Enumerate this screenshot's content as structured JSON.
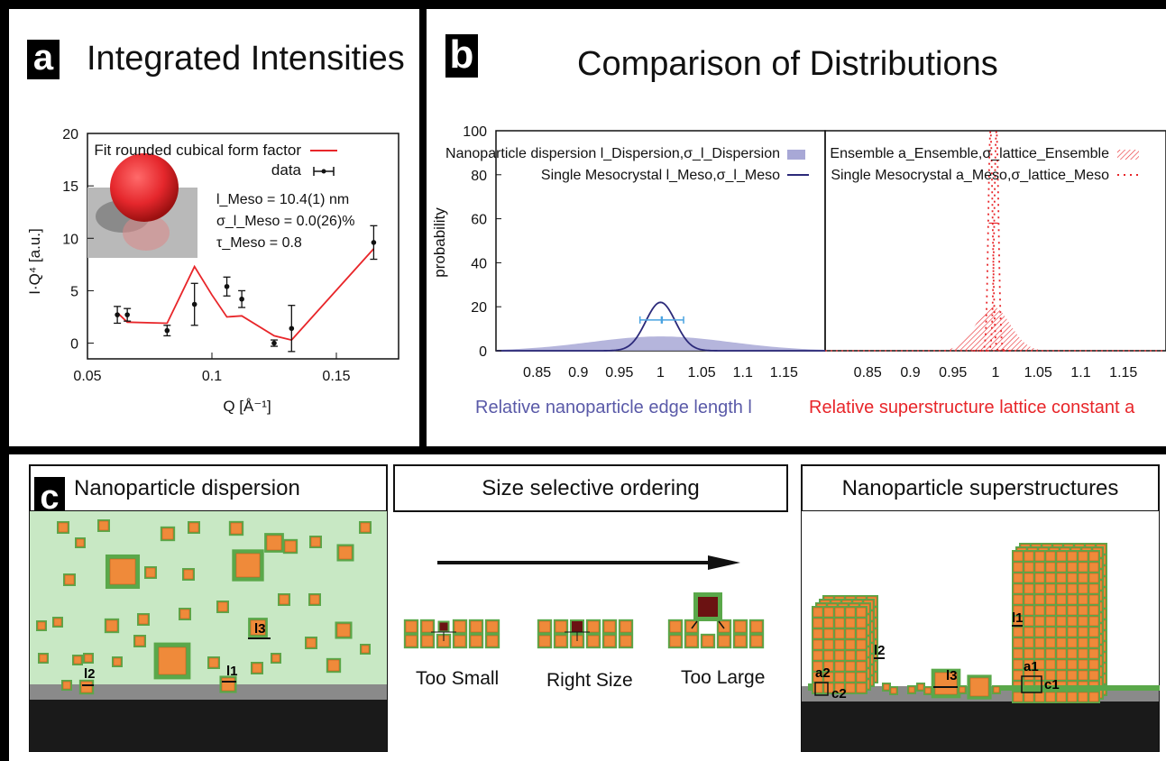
{
  "panel_a": {
    "label": "a",
    "title": "Integrated Intensities",
    "ylabel": "I·Q⁴ [a.u.]",
    "xlabel": "Q [Å⁻¹]",
    "legend_fit": "Fit rounded cubical form factor",
    "legend_data": "data",
    "params": [
      "l_Meso = 10.4(1) nm",
      "σ_l_Meso = 0.0(26)%",
      "τ_Meso = 0.8"
    ],
    "colors": {
      "fit": "#e8262a",
      "data": "#111111",
      "sphere": "#e5272c"
    }
  },
  "panel_b": {
    "label": "b",
    "title": "Comparison of Distributions",
    "ylabel": "probability",
    "left_legend": [
      "Nanoparticle dispersion l_Dispersion,σ_l_Dispersion",
      "Single Mesocrystal l_Meso,σ_l_Meso"
    ],
    "right_legend": [
      "Ensemble a_Ensemble,σ_lattice_Ensemble",
      "Single Mesocrystal a_Meso,σ_lattice_Meso"
    ],
    "left_xlabel": "Relative nanoparticle edge length l",
    "right_xlabel": "Relative superstructure lattice constant a",
    "colors": {
      "dispersion_fill": "#a8a8d6",
      "meso_line": "#2c2a7a",
      "ensemble": "#e8262a",
      "errbar": "#4aa3e0",
      "left_xlabel": "#5a5aa8",
      "right_xlabel": "#e8262a"
    }
  },
  "panel_c": {
    "label": "c",
    "box1_title": "Nanoparticle dispersion",
    "box2_title": "Size selective ordering",
    "box3_title": "Nanoparticle superstructures",
    "captions": [
      "Too Small",
      "Right Size",
      "Too Large"
    ],
    "labels": [
      "l3",
      "l2",
      "l1",
      "l1",
      "l2",
      "l3",
      "a2",
      "c2",
      "a1",
      "c1"
    ],
    "colors": {
      "solution": "#c8e8c4",
      "particle": "#ef8a3a",
      "shell": "#5aa84a",
      "substrate": "#1a1a1a",
      "wetting": "#8a8a8a",
      "dark_particle": "#6b1212"
    }
  },
  "chart_data": [
    {
      "type": "scatter",
      "title": "Integrated Intensities",
      "xlabel": "Q [Å⁻¹]",
      "ylabel": "I·Q⁴ [a.u.]",
      "xlim": [
        0.05,
        0.175
      ],
      "ylim": [
        -1.5,
        20
      ],
      "xticks": [
        0.05,
        0.1,
        0.15
      ],
      "yticks": [
        0,
        5,
        10,
        15,
        20
      ],
      "series": [
        {
          "name": "data",
          "x": [
            0.062,
            0.066,
            0.082,
            0.093,
            0.106,
            0.112,
            0.125,
            0.132,
            0.165
          ],
          "y": [
            2.7,
            2.7,
            1.2,
            3.7,
            5.4,
            4.2,
            0.0,
            1.4,
            9.6
          ],
          "err": [
            0.8,
            0.6,
            0.5,
            2.0,
            0.9,
            0.8,
            0.3,
            2.2,
            1.6
          ]
        },
        {
          "name": "Fit rounded cubical form factor",
          "x": [
            0.062,
            0.066,
            0.082,
            0.093,
            0.1,
            0.106,
            0.112,
            0.125,
            0.132,
            0.165
          ],
          "y": [
            2.9,
            2.0,
            1.9,
            7.3,
            4.6,
            2.5,
            2.6,
            0.7,
            0.3,
            9.0
          ]
        }
      ]
    },
    {
      "type": "area",
      "xlim": [
        0.8,
        1.2
      ],
      "ylim": [
        0,
        100
      ],
      "xticks": [
        0.85,
        0.9,
        0.95,
        1,
        1.05,
        1.1,
        1.15
      ],
      "yticks": [
        0,
        20,
        40,
        60,
        80,
        100
      ],
      "ylabel": "probability",
      "xlabel": "Relative nanoparticle edge length l",
      "series": [
        {
          "name": "Nanoparticle dispersion l_Dispersion,σ_l_Dispersion",
          "center": 1.0,
          "sigma": 0.085,
          "peak": 6.5
        },
        {
          "name": "Single Mesocrystal l_Meso,σ_l_Meso",
          "center": 1.0,
          "sigma": 0.018,
          "peak": 22
        }
      ],
      "errorbar_y": 14,
      "errorbar_centers": [
        0.988,
        1.015
      ],
      "errorbar_halfwidth": 0.013
    },
    {
      "type": "area",
      "xlim": [
        0.8,
        1.2
      ],
      "ylim": [
        0,
        100
      ],
      "xticks": [
        0.85,
        0.9,
        0.95,
        1,
        1.05,
        1.1,
        1.15
      ],
      "yticks": [
        0,
        20,
        40,
        60,
        80,
        100
      ],
      "xlabel": "Relative superstructure lattice constant a",
      "series": [
        {
          "name": "Ensemble a_Ensemble,σ_lattice_Ensemble",
          "center": 0.997,
          "sigma": 0.02,
          "peak": 20
        },
        {
          "name": "Single Mesocrystal a_Meso,σ_lattice_Meso",
          "centers": [
            0.994,
            1.001
          ],
          "sigma": 0.0025,
          "peak": 100
        }
      ],
      "errorbar_y": 58
    }
  ]
}
